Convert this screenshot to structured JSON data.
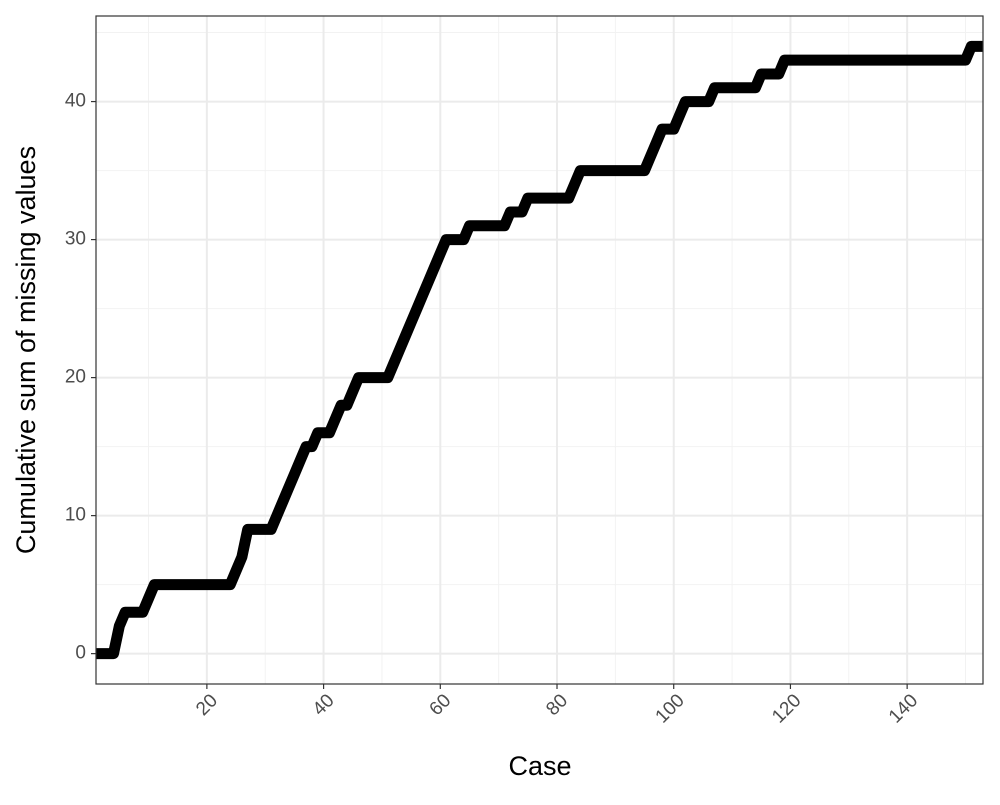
{
  "chart_data": {
    "type": "line",
    "x_label": "Case",
    "y_label": "Cumulative sum of missing values",
    "x": [
      1,
      2,
      3,
      4,
      5,
      6,
      7,
      8,
      9,
      10,
      11,
      12,
      13,
      14,
      15,
      16,
      17,
      18,
      19,
      20,
      21,
      22,
      23,
      24,
      25,
      26,
      27,
      28,
      29,
      30,
      31,
      32,
      33,
      34,
      35,
      36,
      37,
      38,
      39,
      40,
      41,
      42,
      43,
      44,
      45,
      46,
      47,
      48,
      49,
      50,
      51,
      52,
      53,
      54,
      55,
      56,
      57,
      58,
      59,
      60,
      61,
      62,
      63,
      64,
      65,
      66,
      67,
      68,
      69,
      70,
      71,
      72,
      73,
      74,
      75,
      76,
      77,
      78,
      79,
      80,
      81,
      82,
      83,
      84,
      85,
      86,
      87,
      88,
      89,
      90,
      91,
      92,
      93,
      94,
      95,
      96,
      97,
      98,
      99,
      100,
      101,
      102,
      103,
      104,
      105,
      106,
      107,
      108,
      109,
      110,
      111,
      112,
      113,
      114,
      115,
      116,
      117,
      118,
      119,
      120,
      121,
      122,
      123,
      124,
      125,
      126,
      127,
      128,
      129,
      130,
      131,
      132,
      133,
      134,
      135,
      136,
      137,
      138,
      139,
      140,
      141,
      142,
      143,
      144,
      145,
      146,
      147,
      148,
      149,
      150,
      151,
      152,
      153
    ],
    "series": [
      {
        "color": "#000000",
        "values": [
          0,
          0,
          0,
          0,
          2,
          3,
          3,
          3,
          3,
          4,
          5,
          5,
          5,
          5,
          5,
          5,
          5,
          5,
          5,
          5,
          5,
          5,
          5,
          5,
          6,
          7,
          9,
          9,
          9,
          9,
          9,
          10,
          11,
          12,
          13,
          14,
          15,
          15,
          16,
          16,
          16,
          17,
          18,
          18,
          19,
          20,
          20,
          20,
          20,
          20,
          20,
          21,
          22,
          23,
          24,
          25,
          26,
          27,
          28,
          29,
          30,
          30,
          30,
          30,
          31,
          31,
          31,
          31,
          31,
          31,
          31,
          32,
          32,
          32,
          33,
          33,
          33,
          33,
          33,
          33,
          33,
          33,
          34,
          35,
          35,
          35,
          35,
          35,
          35,
          35,
          35,
          35,
          35,
          35,
          35,
          36,
          37,
          38,
          38,
          38,
          39,
          40,
          40,
          40,
          40,
          40,
          41,
          41,
          41,
          41,
          41,
          41,
          41,
          41,
          42,
          42,
          42,
          42,
          43,
          43,
          43,
          43,
          43,
          43,
          43,
          43,
          43,
          43,
          43,
          43,
          43,
          43,
          43,
          43,
          43,
          43,
          43,
          43,
          43,
          43,
          43,
          43,
          43,
          43,
          43,
          43,
          43,
          43,
          43,
          43,
          44,
          44,
          44
        ]
      }
    ],
    "xlim": [
      1,
      153
    ],
    "ylim": [
      -2.2,
      46.2
    ],
    "xticks": [
      20,
      40,
      60,
      80,
      100,
      120,
      140
    ],
    "yticks": [
      0,
      10,
      20,
      30,
      40
    ],
    "xminorticks": [
      10,
      30,
      50,
      70,
      90,
      110,
      130,
      150
    ],
    "yminorticks": [
      5,
      15,
      25,
      35,
      45
    ],
    "grid": true
  }
}
